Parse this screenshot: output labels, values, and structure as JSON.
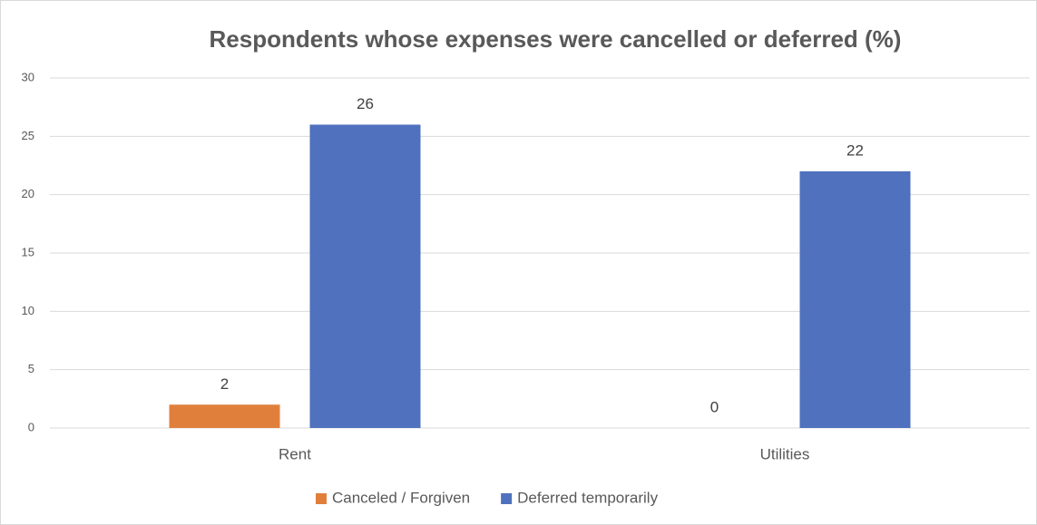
{
  "chart_data": {
    "type": "bar",
    "title": "Respondents whose expenses were cancelled or deferred (%)",
    "categories": [
      "Rent",
      "Utilities"
    ],
    "series": [
      {
        "name": "Canceled / Forgiven",
        "color": "#e07f3c",
        "values": [
          2,
          0
        ]
      },
      {
        "name": "Deferred temporarily",
        "color": "#4f71be",
        "values": [
          26,
          22
        ]
      }
    ],
    "ylim": [
      0,
      30
    ],
    "yticks": [
      0,
      5,
      10,
      15,
      20,
      25,
      30
    ],
    "grid": true,
    "legend": "bottom"
  }
}
